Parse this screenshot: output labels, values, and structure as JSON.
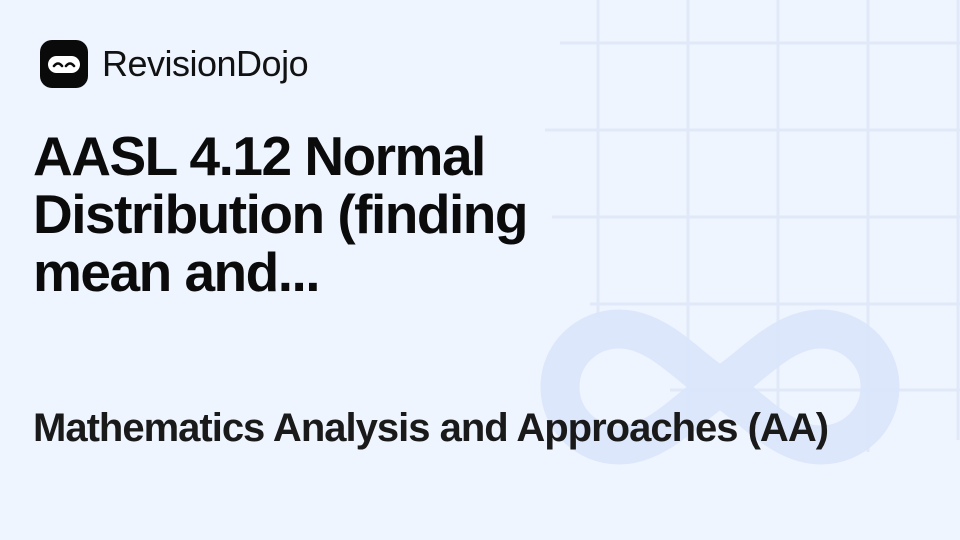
{
  "brand": {
    "name": "RevisionDojo",
    "logo_icon": "ninja-mask-icon"
  },
  "title": "AASL 4.12 Normal Distribution (finding mean and...",
  "subtitle": "Mathematics Analysis and Approaches (AA)",
  "colors": {
    "background": "#eef5ff",
    "grid": "#e2eaf8",
    "infinity": "#d9e6fb",
    "text": "#0b0b0b"
  }
}
